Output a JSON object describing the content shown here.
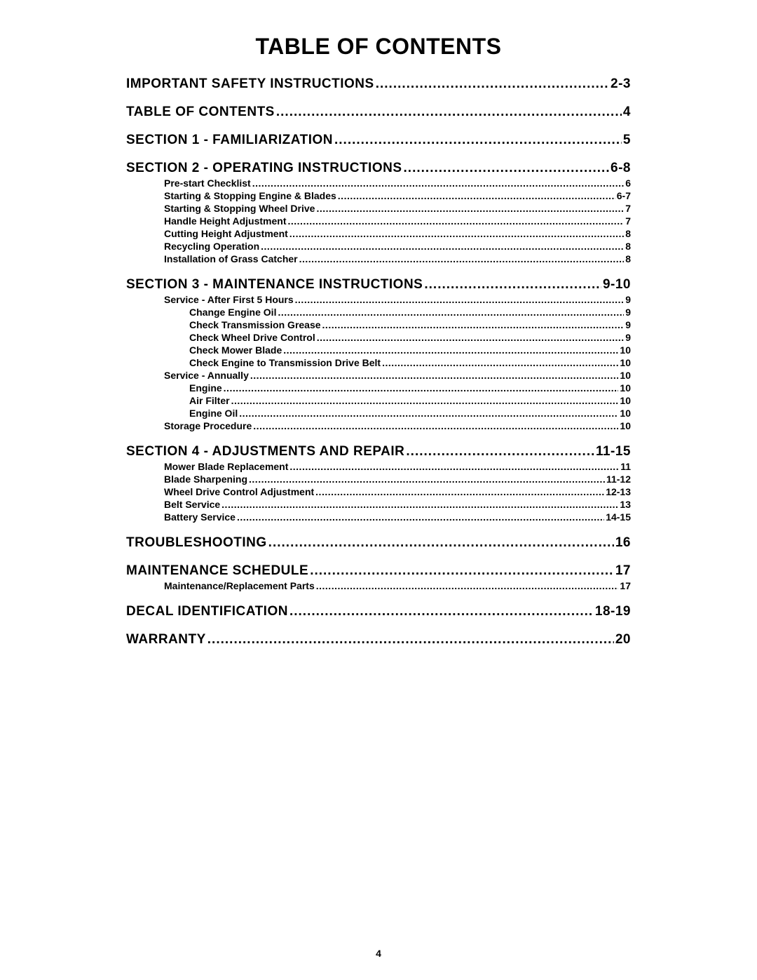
{
  "title": "Table Of Contents",
  "page_number": "4",
  "colors": {
    "text": "#000000",
    "background": "#ffffff"
  },
  "typography": {
    "title_fontsize": 32,
    "section_fontsize": 19,
    "sub_fontsize": 14,
    "font_family": "Arial"
  },
  "toc": [
    {
      "level": 0,
      "label": "IMPORTANT SAFETY INSTRUCTIONS",
      "page": "2-3"
    },
    {
      "level": 0,
      "label": "TABLE OF CONTENTS",
      "page": "4"
    },
    {
      "level": 0,
      "label": "SECTION 1 - FAMILIARIZATION",
      "page": "5"
    },
    {
      "level": 0,
      "label": "SECTION 2 - OPERATING INSTRUCTIONS",
      "page": "6-8"
    },
    {
      "level": 1,
      "label": "Pre-start Checklist",
      "page": "6"
    },
    {
      "level": 1,
      "label": "Starting & Stopping Engine & Blades",
      "page": "6-7"
    },
    {
      "level": 1,
      "label": "Starting & Stopping Wheel Drive",
      "page": "7"
    },
    {
      "level": 1,
      "label": "Handle Height Adjustment",
      "page": "7"
    },
    {
      "level": 1,
      "label": "Cutting Height Adjustment",
      "page": "8"
    },
    {
      "level": 1,
      "label": "Recycling Operation",
      "page": "8"
    },
    {
      "level": 1,
      "label": "Installation of Grass Catcher",
      "page": "8"
    },
    {
      "level": 0,
      "label": "SECTION 3 - MAINTENANCE INSTRUCTIONS",
      "page": "9-10"
    },
    {
      "level": 1,
      "label": "Service - After First 5 Hours",
      "page": "9"
    },
    {
      "level": 2,
      "label": "Change Engine Oil",
      "page": "9"
    },
    {
      "level": 2,
      "label": "Check Transmission Grease",
      "page": "9"
    },
    {
      "level": 2,
      "label": "Check Wheel Drive Control",
      "page": "9"
    },
    {
      "level": 2,
      "label": "Check Mower Blade",
      "page": "10"
    },
    {
      "level": 2,
      "label": "Check Engine to Transmission Drive Belt",
      "page": "10"
    },
    {
      "level": 1,
      "label": "Service - Annually",
      "page": "10"
    },
    {
      "level": 2,
      "label": "Engine",
      "page": "10"
    },
    {
      "level": 2,
      "label": "Air Filter",
      "page": "10"
    },
    {
      "level": 2,
      "label": "Engine Oil",
      "page": "10"
    },
    {
      "level": 1,
      "label": "Storage Procedure",
      "page": "10"
    },
    {
      "level": 0,
      "label": "SECTION 4 - ADJUSTMENTS AND REPAIR",
      "page": "11-15"
    },
    {
      "level": 1,
      "label": "Mower Blade Replacement",
      "page": "11"
    },
    {
      "level": 1,
      "label": "Blade Sharpening",
      "page": "11-12"
    },
    {
      "level": 1,
      "label": "Wheel Drive Control Adjustment",
      "page": "12-13"
    },
    {
      "level": 1,
      "label": "Belt Service",
      "page": "13"
    },
    {
      "level": 1,
      "label": "Battery Service",
      "page": "14-15"
    },
    {
      "level": 0,
      "label": "TROUBLESHOOTING",
      "page": "16"
    },
    {
      "level": 0,
      "label": "MAINTENANCE SCHEDULE",
      "page": "17"
    },
    {
      "level": 1,
      "label": "Maintenance/Replacement Parts",
      "page": "17"
    },
    {
      "level": 0,
      "label": "DECAL IDENTIFICATION",
      "page": "18-19"
    },
    {
      "level": 0,
      "label": "WARRANTY",
      "page": "20"
    }
  ]
}
